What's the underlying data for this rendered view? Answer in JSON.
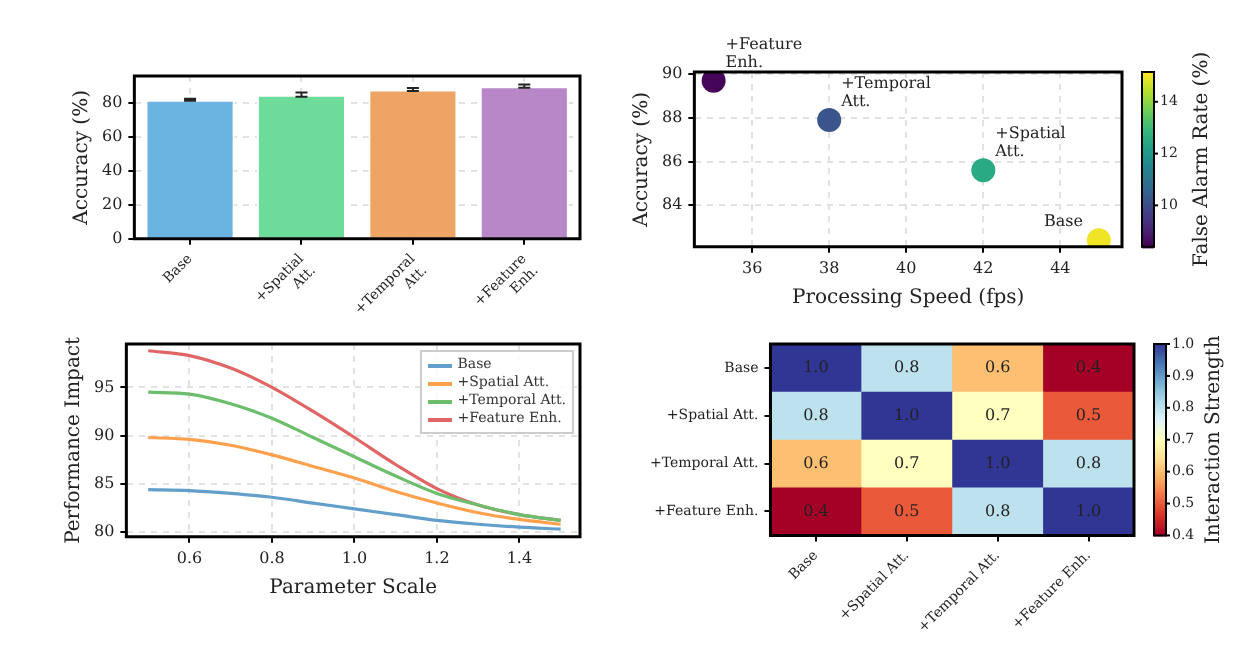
{
  "chart_data": [
    {
      "type": "bar",
      "ylabel": "Accuracy (%)",
      "categories": [
        "Base",
        "+Spatial Att.",
        "+Temporal Att.",
        "+Feature Enh."
      ],
      "values": [
        82,
        85,
        88,
        90
      ],
      "errors": [
        0.6,
        1.2,
        0.9,
        1.0
      ],
      "colors": [
        "#6ab4e2",
        "#6ddb9a",
        "#eda464",
        "#b787c7"
      ],
      "ylim": [
        0,
        96
      ],
      "yticks": [
        0,
        20,
        40,
        60,
        80
      ],
      "grid": true
    },
    {
      "type": "scatter",
      "xlabel": "Processing Speed (fps)",
      "ylabel": "Accuracy (%)",
      "clabel": "False Alarm Rate (%)",
      "x": [
        45,
        42,
        38,
        35
      ],
      "values": [
        82.4,
        85.6,
        87.9,
        89.7
      ],
      "cvalues": [
        15,
        12.5,
        10.2,
        8.5
      ],
      "clim": [
        8.4,
        15.15
      ],
      "cticks": [
        10,
        12,
        14
      ],
      "xlim": [
        34.5,
        45.6
      ],
      "xticks": [
        36,
        38,
        40,
        42,
        44
      ],
      "ylim": [
        82.1,
        90.1
      ],
      "yticks": [
        84,
        86,
        88,
        90
      ],
      "grid": true,
      "marker": "circle",
      "annotations": [
        {
          "text": "Base",
          "x": 45,
          "y": 82.4
        },
        {
          "text": "+Spatial Att.",
          "x": 42,
          "y": 85.6
        },
        {
          "text": "+Temporal Att.",
          "x": 38,
          "y": 87.9
        },
        {
          "text": "+Feature Enh.",
          "x": 35,
          "y": 89.7
        }
      ]
    },
    {
      "type": "line",
      "xlabel": "Parameter Scale",
      "ylabel": "Performance Impact",
      "x": [
        0.5,
        0.6,
        0.7,
        0.8,
        0.9,
        1.0,
        1.1,
        1.2,
        1.3,
        1.4,
        1.5
      ],
      "xlim": [
        0.447,
        1.547
      ],
      "xticks": [
        0.6,
        0.8,
        {
          "value": 1,
          "label": "1.0"
        },
        1.2,
        1.4
      ],
      "ylim": [
        79.5,
        99.5
      ],
      "yticks": [
        80,
        85,
        90,
        95
      ],
      "grid": true,
      "legend": "top right",
      "series": [
        {
          "name": "Base",
          "color": "#62a0cb",
          "values": [
            84.4,
            84.3,
            84.0,
            83.6,
            83.0,
            82.4,
            81.8,
            81.2,
            80.8,
            80.5,
            80.3
          ]
        },
        {
          "name": "+Spatial Att.",
          "color": "#ffa04d",
          "values": [
            89.8,
            89.6,
            89.0,
            88.0,
            86.8,
            85.6,
            84.2,
            83.0,
            82.0,
            81.3,
            80.8
          ]
        },
        {
          "name": "+Temporal Att.",
          "color": "#6cbd6c",
          "values": [
            94.5,
            94.3,
            93.3,
            91.8,
            89.8,
            87.8,
            85.8,
            84.0,
            82.8,
            81.8,
            81.2
          ]
        },
        {
          "name": "+Feature Enh.",
          "color": "#e06666",
          "values": [
            98.8,
            98.3,
            97.0,
            95.0,
            92.5,
            89.8,
            87.0,
            84.5,
            82.8,
            81.8,
            81.2
          ]
        }
      ]
    },
    {
      "type": "heatmap",
      "clabel": "Interaction Strength",
      "categories": [
        "Base",
        "+Spatial Att.",
        "+Temporal Att.",
        "+Feature Enh."
      ],
      "y_categories": [
        "Base",
        "+Spatial Att.",
        "+Temporal Att.",
        "+Feature Enh."
      ],
      "cells": [
        [
          1.0,
          0.8,
          0.6,
          0.4
        ],
        [
          0.8,
          1.0,
          0.7,
          0.5
        ],
        [
          0.6,
          0.7,
          1.0,
          0.8
        ],
        [
          0.4,
          0.5,
          0.8,
          1.0
        ]
      ],
      "cell_labels": [
        [
          "1.0",
          "0.8",
          "0.6",
          "0.4"
        ],
        [
          "0.8",
          "1.0",
          "0.7",
          "0.5"
        ],
        [
          "0.6",
          "0.7",
          "1.0",
          "0.8"
        ],
        [
          "0.4",
          "0.5",
          "0.8",
          "1.0"
        ]
      ],
      "clim": [
        0.4,
        1.0
      ],
      "cticks": [
        0.4,
        0.5,
        0.6,
        0.7,
        0.8,
        0.9,
        {
          "value": 1,
          "label": "1.0"
        }
      ]
    }
  ]
}
